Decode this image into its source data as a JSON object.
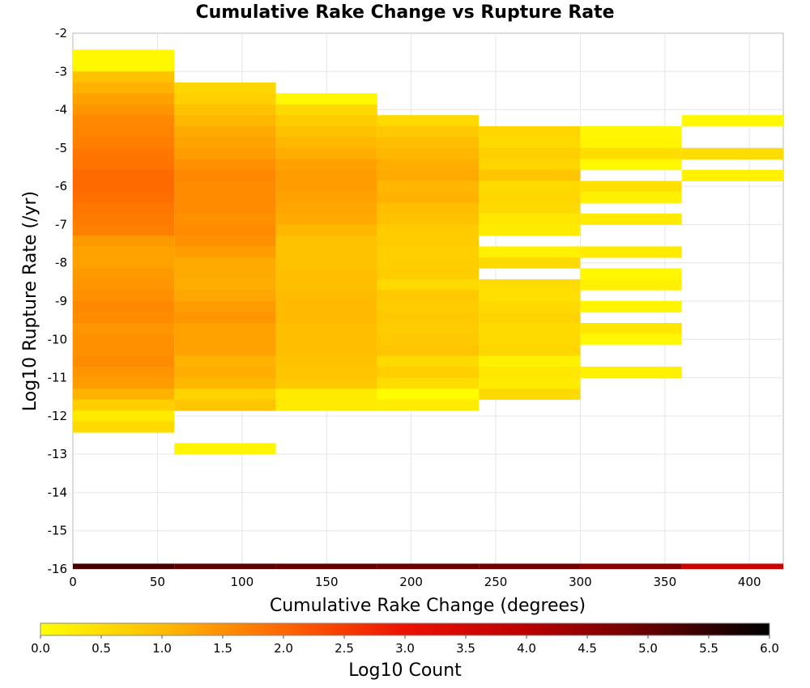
{
  "chart_data": {
    "type": "heatmap",
    "title": "Cumulative Rake Change vs Rupture Rate",
    "xlabel": "Cumulative Rake Change (degrees)",
    "ylabel": "Log10 Rupture Rate (/yr)",
    "xlim": [
      0,
      420
    ],
    "ylim": [
      -16,
      -2
    ],
    "x_ticks": [
      "0",
      "50",
      "100",
      "150",
      "200",
      "250",
      "300",
      "350",
      "400"
    ],
    "y_ticks": [
      "-2",
      "-3",
      "-4",
      "-5",
      "-6",
      "-7",
      "-8",
      "-9",
      "-10",
      "-11",
      "-12",
      "-13",
      "-14",
      "-15",
      "-16"
    ],
    "x_bin_width": 60,
    "y_bin_height": 0.2857,
    "grid": true,
    "colorscale": {
      "label": "Log10 Count",
      "min": 0.0,
      "max": 6.0,
      "ticks": [
        "0.0",
        "0.5",
        "1.0",
        "1.5",
        "2.0",
        "2.5",
        "3.0",
        "3.5",
        "4.0",
        "4.5",
        "5.0",
        "5.5",
        "6.0"
      ],
      "stops": [
        {
          "v": 0.0,
          "color": "#ffff00"
        },
        {
          "v": 1.0,
          "color": "#ffbb00"
        },
        {
          "v": 2.0,
          "color": "#ff6600"
        },
        {
          "v": 3.0,
          "color": "#ee1100"
        },
        {
          "v": 4.0,
          "color": "#bb0000"
        },
        {
          "v": 5.0,
          "color": "#660000"
        },
        {
          "v": 6.0,
          "color": "#000000"
        }
      ]
    },
    "columns": [
      {
        "x0": 0,
        "x1": 60,
        "cells": [
          [
            -2.43,
            -2.71,
            0.1
          ],
          [
            -2.71,
            -3.0,
            0.1
          ],
          [
            -3.0,
            -3.29,
            0.9
          ],
          [
            -3.29,
            -3.57,
            1.1
          ],
          [
            -3.57,
            -3.86,
            1.3
          ],
          [
            -3.86,
            -4.14,
            1.45
          ],
          [
            -4.14,
            -4.43,
            1.6
          ],
          [
            -4.43,
            -4.71,
            1.65
          ],
          [
            -4.71,
            -5.0,
            1.7
          ],
          [
            -5.0,
            -5.29,
            1.8
          ],
          [
            -5.29,
            -5.57,
            1.85
          ],
          [
            -5.57,
            -5.86,
            1.95
          ],
          [
            -5.86,
            -6.14,
            1.95
          ],
          [
            -6.14,
            -6.43,
            1.9
          ],
          [
            -6.43,
            -6.71,
            1.8
          ],
          [
            -6.71,
            -7.0,
            1.75
          ],
          [
            -7.0,
            -7.29,
            1.7
          ],
          [
            -7.29,
            -7.57,
            1.4
          ],
          [
            -7.57,
            -7.86,
            1.3
          ],
          [
            -7.86,
            -8.14,
            1.3
          ],
          [
            -8.14,
            -8.43,
            1.4
          ],
          [
            -8.43,
            -8.71,
            1.45
          ],
          [
            -8.71,
            -9.0,
            1.5
          ],
          [
            -9.0,
            -9.29,
            1.6
          ],
          [
            -9.29,
            -9.57,
            1.55
          ],
          [
            -9.57,
            -9.86,
            1.45
          ],
          [
            -9.86,
            -10.14,
            1.5
          ],
          [
            -10.14,
            -10.43,
            1.5
          ],
          [
            -10.43,
            -10.71,
            1.55
          ],
          [
            -10.71,
            -11.0,
            1.45
          ],
          [
            -11.0,
            -11.29,
            1.35
          ],
          [
            -11.29,
            -11.57,
            1.1
          ],
          [
            -11.57,
            -11.86,
            0.7
          ],
          [
            -11.86,
            -12.14,
            0.3
          ],
          [
            -12.14,
            -12.43,
            0.55
          ]
        ]
      },
      {
        "x0": 60,
        "x1": 120,
        "cells": [
          [
            -3.29,
            -3.57,
            0.6
          ],
          [
            -3.57,
            -3.86,
            0.7
          ],
          [
            -3.86,
            -4.14,
            0.9
          ],
          [
            -4.14,
            -4.43,
            1.05
          ],
          [
            -4.43,
            -4.71,
            1.2
          ],
          [
            -4.71,
            -5.0,
            1.3
          ],
          [
            -5.0,
            -5.29,
            1.35
          ],
          [
            -5.29,
            -5.57,
            1.5
          ],
          [
            -5.57,
            -5.86,
            1.6
          ],
          [
            -5.86,
            -6.14,
            1.55
          ],
          [
            -6.14,
            -6.43,
            1.55
          ],
          [
            -6.43,
            -6.71,
            1.55
          ],
          [
            -6.71,
            -7.0,
            1.5
          ],
          [
            -7.0,
            -7.29,
            1.55
          ],
          [
            -7.29,
            -7.57,
            1.5
          ],
          [
            -7.57,
            -7.86,
            1.35
          ],
          [
            -7.86,
            -8.14,
            1.2
          ],
          [
            -8.14,
            -8.43,
            1.2
          ],
          [
            -8.43,
            -8.71,
            1.15
          ],
          [
            -8.71,
            -9.0,
            1.25
          ],
          [
            -9.0,
            -9.29,
            1.35
          ],
          [
            -9.29,
            -9.57,
            1.45
          ],
          [
            -9.57,
            -9.86,
            1.3
          ],
          [
            -9.86,
            -10.14,
            1.3
          ],
          [
            -10.14,
            -10.43,
            1.3
          ],
          [
            -10.43,
            -10.71,
            1.1
          ],
          [
            -10.71,
            -11.0,
            1.15
          ],
          [
            -11.0,
            -11.29,
            1.05
          ],
          [
            -11.29,
            -11.57,
            0.65
          ],
          [
            -11.57,
            -11.86,
            0.85
          ],
          [
            -12.71,
            -13.0,
            0.15
          ]
        ]
      },
      {
        "x0": 120,
        "x1": 180,
        "cells": [
          [
            -3.57,
            -3.86,
            0.1
          ],
          [
            -3.86,
            -4.14,
            0.55
          ],
          [
            -4.14,
            -4.43,
            0.75
          ],
          [
            -4.43,
            -4.71,
            0.9
          ],
          [
            -4.71,
            -5.0,
            1.05
          ],
          [
            -5.0,
            -5.29,
            1.15
          ],
          [
            -5.29,
            -5.57,
            1.3
          ],
          [
            -5.57,
            -5.86,
            1.35
          ],
          [
            -5.86,
            -6.14,
            1.35
          ],
          [
            -6.14,
            -6.43,
            1.3
          ],
          [
            -6.43,
            -6.71,
            1.25
          ],
          [
            -6.71,
            -7.0,
            1.2
          ],
          [
            -7.0,
            -7.29,
            1.05
          ],
          [
            -7.29,
            -7.57,
            0.9
          ],
          [
            -7.57,
            -7.86,
            0.9
          ],
          [
            -7.86,
            -8.14,
            0.9
          ],
          [
            -8.14,
            -8.43,
            0.95
          ],
          [
            -8.43,
            -8.71,
            0.95
          ],
          [
            -8.71,
            -9.0,
            1.0
          ],
          [
            -9.0,
            -9.29,
            1.0
          ],
          [
            -9.29,
            -9.57,
            1.0
          ],
          [
            -9.57,
            -9.86,
            0.95
          ],
          [
            -9.86,
            -10.14,
            0.95
          ],
          [
            -10.14,
            -10.43,
            0.95
          ],
          [
            -10.43,
            -10.71,
            0.9
          ],
          [
            -10.71,
            -11.0,
            0.85
          ],
          [
            -11.0,
            -11.29,
            0.8
          ],
          [
            -11.29,
            -11.57,
            0.3
          ],
          [
            -11.57,
            -11.86,
            0.3
          ]
        ]
      },
      {
        "x0": 180,
        "x1": 240,
        "cells": [
          [
            -4.14,
            -4.43,
            0.55
          ],
          [
            -4.43,
            -4.71,
            0.8
          ],
          [
            -4.71,
            -5.0,
            0.95
          ],
          [
            -5.0,
            -5.29,
            1.05
          ],
          [
            -5.29,
            -5.57,
            1.15
          ],
          [
            -5.57,
            -5.86,
            1.2
          ],
          [
            -5.86,
            -6.14,
            1.05
          ],
          [
            -6.14,
            -6.43,
            1.1
          ],
          [
            -6.43,
            -6.71,
            0.95
          ],
          [
            -6.71,
            -7.0,
            0.9
          ],
          [
            -7.0,
            -7.29,
            0.75
          ],
          [
            -7.29,
            -7.57,
            0.75
          ],
          [
            -7.57,
            -7.86,
            0.7
          ],
          [
            -7.86,
            -8.14,
            0.7
          ],
          [
            -8.14,
            -8.43,
            0.75
          ],
          [
            -8.43,
            -8.71,
            0.55
          ],
          [
            -8.71,
            -9.0,
            0.8
          ],
          [
            -9.0,
            -9.29,
            0.75
          ],
          [
            -9.29,
            -9.57,
            0.8
          ],
          [
            -9.57,
            -9.86,
            0.75
          ],
          [
            -9.86,
            -10.14,
            0.8
          ],
          [
            -10.14,
            -10.43,
            0.85
          ],
          [
            -10.43,
            -10.71,
            0.55
          ],
          [
            -10.71,
            -11.0,
            0.7
          ],
          [
            -11.0,
            -11.29,
            0.5
          ],
          [
            -11.29,
            -11.57,
            0.05
          ],
          [
            -11.57,
            -11.86,
            0.3
          ]
        ]
      },
      {
        "x0": 240,
        "x1": 300,
        "cells": [
          [
            -4.43,
            -4.71,
            0.6
          ],
          [
            -4.71,
            -5.0,
            0.55
          ],
          [
            -5.0,
            -5.29,
            0.7
          ],
          [
            -5.29,
            -5.57,
            0.6
          ],
          [
            -5.57,
            -5.86,
            0.85
          ],
          [
            -5.86,
            -6.14,
            0.55
          ],
          [
            -6.14,
            -6.43,
            0.6
          ],
          [
            -6.43,
            -6.71,
            0.55
          ],
          [
            -6.71,
            -7.0,
            0.35
          ],
          [
            -7.0,
            -7.29,
            0.3
          ],
          [
            -7.57,
            -7.86,
            0.2
          ],
          [
            -7.86,
            -8.14,
            0.55
          ],
          [
            -8.43,
            -8.71,
            0.5
          ],
          [
            -8.71,
            -9.0,
            0.45
          ],
          [
            -9.0,
            -9.29,
            0.55
          ],
          [
            -9.29,
            -9.57,
            0.65
          ],
          [
            -9.57,
            -9.86,
            0.55
          ],
          [
            -9.86,
            -10.14,
            0.55
          ],
          [
            -10.14,
            -10.43,
            0.6
          ],
          [
            -10.43,
            -10.71,
            0.2
          ],
          [
            -10.71,
            -11.0,
            0.35
          ],
          [
            -11.0,
            -11.29,
            0.3
          ],
          [
            -11.29,
            -11.57,
            0.55
          ]
        ]
      },
      {
        "x0": 300,
        "x1": 360,
        "cells": [
          [
            -4.43,
            -4.71,
            0.1
          ],
          [
            -4.71,
            -5.0,
            0.15
          ],
          [
            -5.0,
            -5.29,
            0.5
          ],
          [
            -5.29,
            -5.57,
            0.1
          ],
          [
            -5.86,
            -6.14,
            0.45
          ],
          [
            -6.14,
            -6.43,
            0.2
          ],
          [
            -6.71,
            -7.0,
            0.3
          ],
          [
            -7.57,
            -7.86,
            0.3
          ],
          [
            -8.14,
            -8.43,
            0.1
          ],
          [
            -8.43,
            -8.71,
            0.2
          ],
          [
            -9.0,
            -9.29,
            0.15
          ],
          [
            -9.57,
            -9.86,
            0.35
          ],
          [
            -9.86,
            -10.14,
            0.1
          ],
          [
            -10.71,
            -11.0,
            0.2
          ]
        ]
      },
      {
        "x0": 360,
        "x1": 420,
        "cells": [
          [
            -4.14,
            -4.43,
            0.1
          ],
          [
            -5.0,
            -5.29,
            0.5
          ],
          [
            -5.57,
            -5.86,
            0.2
          ]
        ]
      }
    ],
    "bottom_band": [
      {
        "x0": 0,
        "x1": 60,
        "value": 5.3
      },
      {
        "x0": 60,
        "x1": 120,
        "value": 5.1
      },
      {
        "x0": 120,
        "x1": 180,
        "value": 5.0
      },
      {
        "x0": 180,
        "x1": 240,
        "value": 4.95
      },
      {
        "x0": 240,
        "x1": 300,
        "value": 4.85
      },
      {
        "x0": 300,
        "x1": 360,
        "value": 4.6
      },
      {
        "x0": 360,
        "x1": 420,
        "value": 3.7
      }
    ]
  }
}
